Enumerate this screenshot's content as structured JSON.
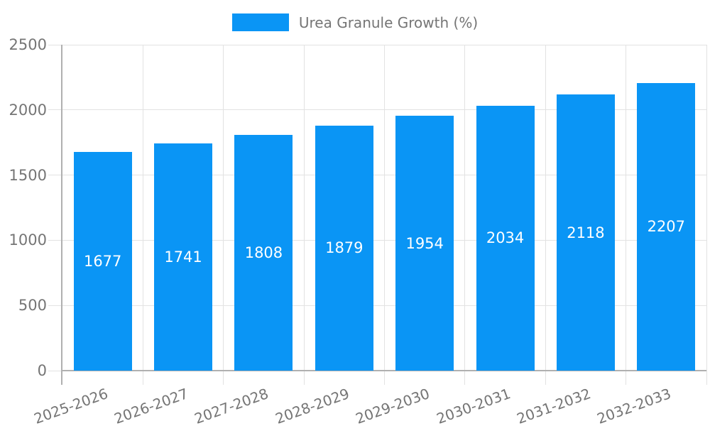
{
  "chart_data": {
    "type": "bar",
    "title": "",
    "legend": {
      "position": "top",
      "entries": [
        {
          "label": "Urea Granule Growth (%)",
          "color": "#0a95f5"
        }
      ]
    },
    "categories": [
      "2025-2026",
      "2026-2027",
      "2027-2028",
      "2028-2029",
      "2029-2030",
      "2030-2031",
      "2031-2032",
      "2032-2033"
    ],
    "series": [
      {
        "name": "Urea Granule Growth (%)",
        "values": [
          1677,
          1741,
          1808,
          1879,
          1954,
          2034,
          2118,
          2207
        ]
      }
    ],
    "value_labels_shown": true,
    "xlabel": "",
    "ylabel": "",
    "ylim": [
      0,
      2500
    ],
    "yticks": [
      0,
      500,
      1000,
      1500,
      2000,
      2500
    ],
    "grid": true,
    "x_label_rotation_deg": -20,
    "colors": {
      "bar": "#0a95f5",
      "grid": "#e2e2e2",
      "axis": "#b0b0b0",
      "tick_text": "#757575",
      "value_text": "#ffffff",
      "background": "#ffffff"
    }
  }
}
